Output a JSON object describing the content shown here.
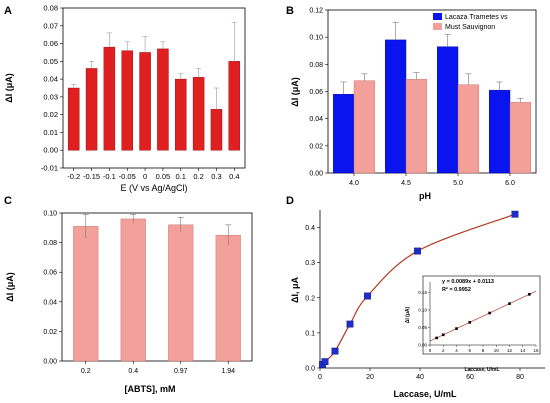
{
  "chart_data": [
    {
      "panel": "A",
      "type": "bar",
      "xlabel": "E (V vs Ag/AgCl)",
      "ylabel": "ΔI (μA)",
      "ylim": [
        -0.01,
        0.08
      ],
      "yticks": [
        "-0.01",
        "0.00",
        "0.01",
        "0.02",
        "0.03",
        "0.04",
        "0.05",
        "0.06",
        "0.07",
        "0.08"
      ],
      "categories": [
        "-0.2",
        "-0.15",
        "-0.1",
        "-0.05",
        "0",
        "0.05",
        "0.1",
        "0.2",
        "0.3",
        "0.4"
      ],
      "values": [
        0.035,
        0.046,
        0.058,
        0.056,
        0.055,
        0.057,
        0.04,
        0.041,
        0.023,
        0.05
      ],
      "errors": [
        0.002,
        0.004,
        0.008,
        0.005,
        0.009,
        0.004,
        0.003,
        0.005,
        0.012,
        0.022
      ],
      "color": "#e02020"
    },
    {
      "panel": "B",
      "type": "bar",
      "xlabel": "pH",
      "ylabel": "ΔI (μA)",
      "ylim": [
        0.0,
        0.12
      ],
      "yticks": [
        "0.00",
        "0.02",
        "0.04",
        "0.06",
        "0.08",
        "0.10",
        "0.12"
      ],
      "categories": [
        "4.0",
        "4.5",
        "5.0",
        "6.0"
      ],
      "series": [
        {
          "name": "Lacaza Trametes vs",
          "color": "#0a14ee",
          "values": [
            0.058,
            0.098,
            0.093,
            0.061
          ],
          "errors": [
            0.009,
            0.013,
            0.009,
            0.006
          ]
        },
        {
          "name": "Must Sauvignon",
          "color": "#f4a09a",
          "values": [
            0.068,
            0.069,
            0.065,
            0.052
          ],
          "errors": [
            0.005,
            0.005,
            0.008,
            0.003
          ]
        }
      ],
      "legend": "top-right"
    },
    {
      "panel": "C",
      "type": "bar",
      "xlabel": "[ABTS], mM",
      "ylabel": "ΔI (μA)",
      "ylim": [
        0.0,
        0.1
      ],
      "yticks": [
        "0.00",
        "0.02",
        "0.04",
        "0.06",
        "0.08",
        "0.10"
      ],
      "categories": [
        "0.2",
        "0.4",
        "0.97",
        "1.94"
      ],
      "values": [
        0.091,
        0.096,
        0.092,
        0.085
      ],
      "errors": [
        0.008,
        0.003,
        0.005,
        0.007
      ],
      "color": "#f4a09a"
    },
    {
      "panel": "D",
      "type": "scatter",
      "xlabel": "Laccase, U/mL",
      "ylabel": "ΔI, μA",
      "xlim": [
        0,
        90
      ],
      "ylim": [
        0,
        0.45
      ],
      "xticks": [
        "0",
        "20",
        "40",
        "60",
        "80"
      ],
      "yticks": [
        "0.0",
        "0.1",
        "0.2",
        "0.3",
        "0.4"
      ],
      "x": [
        1,
        2,
        6,
        12,
        19,
        39,
        78
      ],
      "y": [
        0.01,
        0.018,
        0.048,
        0.125,
        0.205,
        0.333,
        0.438
      ],
      "color": "#1f2ec8",
      "fit_color": "#b33a1e",
      "inset": {
        "type": "scatter",
        "xlabel": "Laccase, U/mL",
        "ylabel": "ΔI (μA)",
        "xlim": [
          0,
          16
        ],
        "ylim": [
          0,
          0.18
        ],
        "xticks": [
          "0",
          "2",
          "4",
          "6",
          "8",
          "10",
          "12",
          "14",
          "16"
        ],
        "yticks": [
          "0.00",
          "0.05",
          "0.10",
          "0.15"
        ],
        "x": [
          1,
          2,
          4,
          6,
          9,
          12,
          15
        ],
        "y": [
          0.0202,
          0.0291,
          0.0469,
          0.0647,
          0.0914,
          0.1181,
          0.1448
        ],
        "equation": "y = 0.0089x + 0.0113",
        "r2": "R² = 0.9952"
      }
    }
  ]
}
